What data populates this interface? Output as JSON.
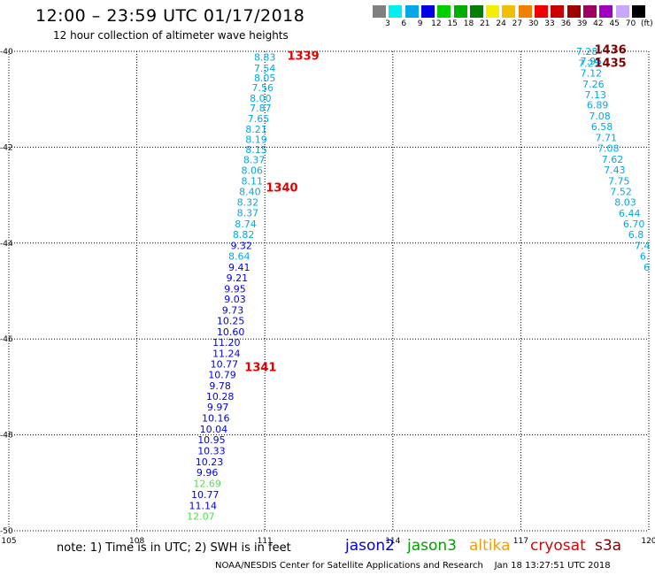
{
  "header": {
    "title": "12:00 – 23:59 UTC 01/17/2018",
    "subtitle": "12 hour collection of altimeter wave heights"
  },
  "color_scale": {
    "colors": [
      "#808080",
      "#00f0f0",
      "#00a8e8",
      "#0000e8",
      "#00d000",
      "#00b000",
      "#008000",
      "#f0f000",
      "#f0c000",
      "#f08000",
      "#f00000",
      "#c80000",
      "#a00000",
      "#a00060",
      "#a000c0",
      "#c8a8ff",
      "#000000"
    ],
    "labels": [
      "3",
      "6",
      "9",
      "12",
      "15",
      "18",
      "21",
      "24",
      "27",
      "30",
      "33",
      "36",
      "39",
      "42",
      "45",
      "70",
      "(ft)"
    ]
  },
  "footer": {
    "note": "note: 1) Time is in UTC; 2) SWH is in feet",
    "credit": "NOAA/NESDIS Center for Satellite Applications and Research    Jan 18 13:27:51 UTC 2018"
  },
  "satellites": [
    {
      "name": "jason2",
      "color": "#0000e0"
    },
    {
      "name": "jason3",
      "color": "#00a000"
    },
    {
      "name": "altika",
      "color": "#f0a000"
    },
    {
      "name": "cryosat",
      "color": "#e00000"
    },
    {
      "name": "s3a",
      "color": "#800000"
    }
  ],
  "chart_data": {
    "type": "scatter",
    "xlim": [
      105,
      120
    ],
    "ylim": [
      -50,
      -40
    ],
    "x_ticks": [
      105,
      108,
      111,
      114,
      117,
      120
    ],
    "y_ticks": [
      -40,
      -42,
      -44,
      -46,
      -48,
      -50
    ],
    "x_tick_labels": [
      "105",
      "108",
      "111",
      "114",
      "117",
      "120"
    ],
    "y_tick_labels": [
      "-40",
      "-42",
      "-44",
      "-46",
      "-48",
      "-50"
    ],
    "grid": true,
    "tracks": [
      {
        "label": "1339",
        "label_color": "#e00000",
        "label_x": 111.9,
        "label_y": -40.1
      },
      {
        "label": "1340",
        "label_color": "#e00000",
        "label_x": 111.4,
        "label_y": -42.85
      },
      {
        "label": "1341",
        "label_color": "#e00000",
        "label_x": 110.9,
        "label_y": -46.6
      },
      {
        "label": "1436",
        "label_color": "#800000",
        "label_x": 119.1,
        "label_y": -39.97
      },
      {
        "label": "1435",
        "label_color": "#800000",
        "label_x": 119.1,
        "label_y": -40.25
      }
    ],
    "points": [
      {
        "x": 111.0,
        "y": -40.12,
        "v": "8.83",
        "c": "#00a8e8"
      },
      {
        "x": 111.0,
        "y": -40.35,
        "v": "7.54",
        "c": "#00a8e8"
      },
      {
        "x": 111.0,
        "y": -40.55,
        "v": "8.05",
        "c": "#00a8e8"
      },
      {
        "x": 110.95,
        "y": -40.76,
        "v": "7.56",
        "c": "#00a8e8"
      },
      {
        "x": 110.9,
        "y": -40.98,
        "v": "8.00",
        "c": "#00a8e8"
      },
      {
        "x": 110.9,
        "y": -41.18,
        "v": "7.87",
        "c": "#00a8e8"
      },
      {
        "x": 110.85,
        "y": -41.4,
        "v": "7.65",
        "c": "#00a8e8"
      },
      {
        "x": 110.8,
        "y": -41.62,
        "v": "8.21",
        "c": "#00a8e8"
      },
      {
        "x": 110.8,
        "y": -41.84,
        "v": "8.19",
        "c": "#00a8e8"
      },
      {
        "x": 110.8,
        "y": -42.05,
        "v": "8.15",
        "c": "#00a8e8"
      },
      {
        "x": 110.75,
        "y": -42.26,
        "v": "8.37",
        "c": "#00a8e8"
      },
      {
        "x": 110.7,
        "y": -42.48,
        "v": "8.06",
        "c": "#00a8e8"
      },
      {
        "x": 110.7,
        "y": -42.7,
        "v": "8.11",
        "c": "#00a8e8"
      },
      {
        "x": 110.65,
        "y": -42.92,
        "v": "8.40",
        "c": "#00a8e8"
      },
      {
        "x": 110.6,
        "y": -43.15,
        "v": "8.32",
        "c": "#00a8e8"
      },
      {
        "x": 110.6,
        "y": -43.37,
        "v": "8.37",
        "c": "#00a8e8"
      },
      {
        "x": 110.55,
        "y": -43.6,
        "v": "8.74",
        "c": "#00a8e8"
      },
      {
        "x": 110.5,
        "y": -43.82,
        "v": "8.82",
        "c": "#00a8e8"
      },
      {
        "x": 110.45,
        "y": -44.05,
        "v": "9.32",
        "c": "#0000e8"
      },
      {
        "x": 110.4,
        "y": -44.27,
        "v": "8.64",
        "c": "#00a8e8"
      },
      {
        "x": 110.4,
        "y": -44.5,
        "v": "9.41",
        "c": "#0000e8"
      },
      {
        "x": 110.35,
        "y": -44.72,
        "v": "9.21",
        "c": "#0000e8"
      },
      {
        "x": 110.3,
        "y": -44.95,
        "v": "9.95",
        "c": "#0000e8"
      },
      {
        "x": 110.3,
        "y": -45.17,
        "v": "9.03",
        "c": "#0000e8"
      },
      {
        "x": 110.25,
        "y": -45.4,
        "v": "9.73",
        "c": "#0000e8"
      },
      {
        "x": 110.2,
        "y": -45.62,
        "v": "10.25",
        "c": "#0000e8"
      },
      {
        "x": 110.2,
        "y": -45.85,
        "v": "10.60",
        "c": "#0000e8"
      },
      {
        "x": 110.1,
        "y": -46.07,
        "v": "11.20",
        "c": "#0000e8"
      },
      {
        "x": 110.1,
        "y": -46.3,
        "v": "11.24",
        "c": "#0000e8"
      },
      {
        "x": 110.05,
        "y": -46.52,
        "v": "10.77",
        "c": "#0000e8"
      },
      {
        "x": 110.0,
        "y": -46.74,
        "v": "10.79",
        "c": "#0000e8"
      },
      {
        "x": 109.95,
        "y": -46.97,
        "v": "9.78",
        "c": "#0000e8"
      },
      {
        "x": 109.95,
        "y": -47.2,
        "v": "10.28",
        "c": "#0000e8"
      },
      {
        "x": 109.9,
        "y": -47.42,
        "v": "9.97",
        "c": "#0000e8"
      },
      {
        "x": 109.85,
        "y": -47.65,
        "v": "10.16",
        "c": "#0000e8"
      },
      {
        "x": 109.8,
        "y": -47.88,
        "v": "10.04",
        "c": "#0000e8"
      },
      {
        "x": 109.75,
        "y": -48.1,
        "v": "10.95",
        "c": "#0000e8"
      },
      {
        "x": 109.75,
        "y": -48.33,
        "v": "10.33",
        "c": "#0000e8"
      },
      {
        "x": 109.7,
        "y": -48.56,
        "v": "10.23",
        "c": "#0000e8"
      },
      {
        "x": 109.65,
        "y": -48.78,
        "v": "9.96",
        "c": "#0000e8"
      },
      {
        "x": 109.65,
        "y": -49.01,
        "v": "12.69",
        "c": "#50e050"
      },
      {
        "x": 109.6,
        "y": -49.24,
        "v": "10.77",
        "c": "#0000e8"
      },
      {
        "x": 109.55,
        "y": -49.47,
        "v": "11.14",
        "c": "#0000e8"
      },
      {
        "x": 109.5,
        "y": -49.7,
        "v": "12.07",
        "c": "#50e050"
      },
      {
        "x": 118.55,
        "y": -40.0,
        "v": "7.28",
        "c": "#00a8e8"
      },
      {
        "x": 118.65,
        "y": -40.2,
        "v": "7.95",
        "c": "#00a8e8"
      },
      {
        "x": 118.6,
        "y": -40.25,
        "v": "7.25",
        "c": "#00a8e8"
      },
      {
        "x": 118.65,
        "y": -40.45,
        "v": "7.12",
        "c": "#00a8e8"
      },
      {
        "x": 118.7,
        "y": -40.68,
        "v": "7.26",
        "c": "#00a8e8"
      },
      {
        "x": 118.75,
        "y": -40.9,
        "v": "7.13",
        "c": "#00a8e8"
      },
      {
        "x": 118.8,
        "y": -41.12,
        "v": "6.89",
        "c": "#00a8e8"
      },
      {
        "x": 118.85,
        "y": -41.35,
        "v": "7.08",
        "c": "#00a8e8"
      },
      {
        "x": 118.9,
        "y": -41.57,
        "v": "6.58",
        "c": "#00a8e8"
      },
      {
        "x": 119.0,
        "y": -41.8,
        "v": "7.71",
        "c": "#00a8e8"
      },
      {
        "x": 119.05,
        "y": -42.02,
        "v": "7.08",
        "c": "#00a8e8"
      },
      {
        "x": 119.15,
        "y": -42.25,
        "v": "7.62",
        "c": "#00a8e8"
      },
      {
        "x": 119.2,
        "y": -42.47,
        "v": "7.43",
        "c": "#00a8e8"
      },
      {
        "x": 119.3,
        "y": -42.7,
        "v": "7.75",
        "c": "#00a8e8"
      },
      {
        "x": 119.35,
        "y": -42.92,
        "v": "7.52",
        "c": "#00a8e8"
      },
      {
        "x": 119.45,
        "y": -43.15,
        "v": "8.03",
        "c": "#00a8e8"
      },
      {
        "x": 119.55,
        "y": -43.38,
        "v": "6.44",
        "c": "#00a8e8"
      },
      {
        "x": 119.65,
        "y": -43.6,
        "v": "6.70",
        "c": "#00a8e8"
      },
      {
        "x": 119.7,
        "y": -43.82,
        "v": "6.8",
        "c": "#00a8e8"
      },
      {
        "x": 119.85,
        "y": -44.05,
        "v": "7.4",
        "c": "#00a8e8"
      },
      {
        "x": 119.9,
        "y": -44.27,
        "v": "6.",
        "c": "#00a8e8"
      },
      {
        "x": 119.95,
        "y": -44.5,
        "v": "6",
        "c": "#00a8e8"
      }
    ]
  }
}
